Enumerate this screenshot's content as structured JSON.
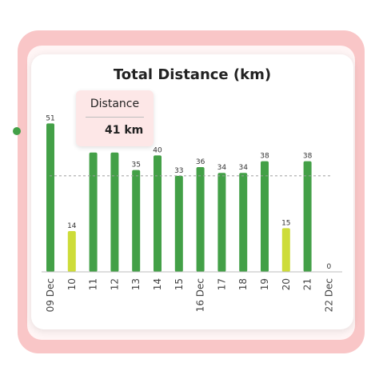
{
  "colors": {
    "bar_green": "#43a047",
    "bar_yellow": "#cddc39",
    "frame_pink": "#f9c6c7",
    "average_line": "#9e9e9e"
  },
  "tooltip": {
    "title": "Distance",
    "value": "41 km",
    "dot_color": "#43a047"
  },
  "chart_data": {
    "type": "bar",
    "title": "Total Distance (km)",
    "categories": [
      "09 Dec",
      "10",
      "11",
      "12",
      "13",
      "14",
      "15",
      "16 Dec",
      "17",
      "18",
      "19",
      "20",
      "21",
      "22 Dec"
    ],
    "values": [
      51,
      14,
      41,
      41,
      35,
      40,
      33,
      36,
      34,
      34,
      38,
      15,
      38,
      0
    ],
    "value_labels": [
      "51",
      "14",
      "",
      "",
      "35",
      "40",
      "33",
      "36",
      "34",
      "34",
      "38",
      "15",
      "38",
      "0"
    ],
    "bar_colors": [
      "green",
      "yellow",
      "green",
      "green",
      "green",
      "green",
      "green",
      "green",
      "green",
      "green",
      "green",
      "yellow",
      "green",
      "green"
    ],
    "average_line": 33,
    "ylim": [
      0,
      55
    ],
    "xlabel": "",
    "ylabel": ""
  }
}
